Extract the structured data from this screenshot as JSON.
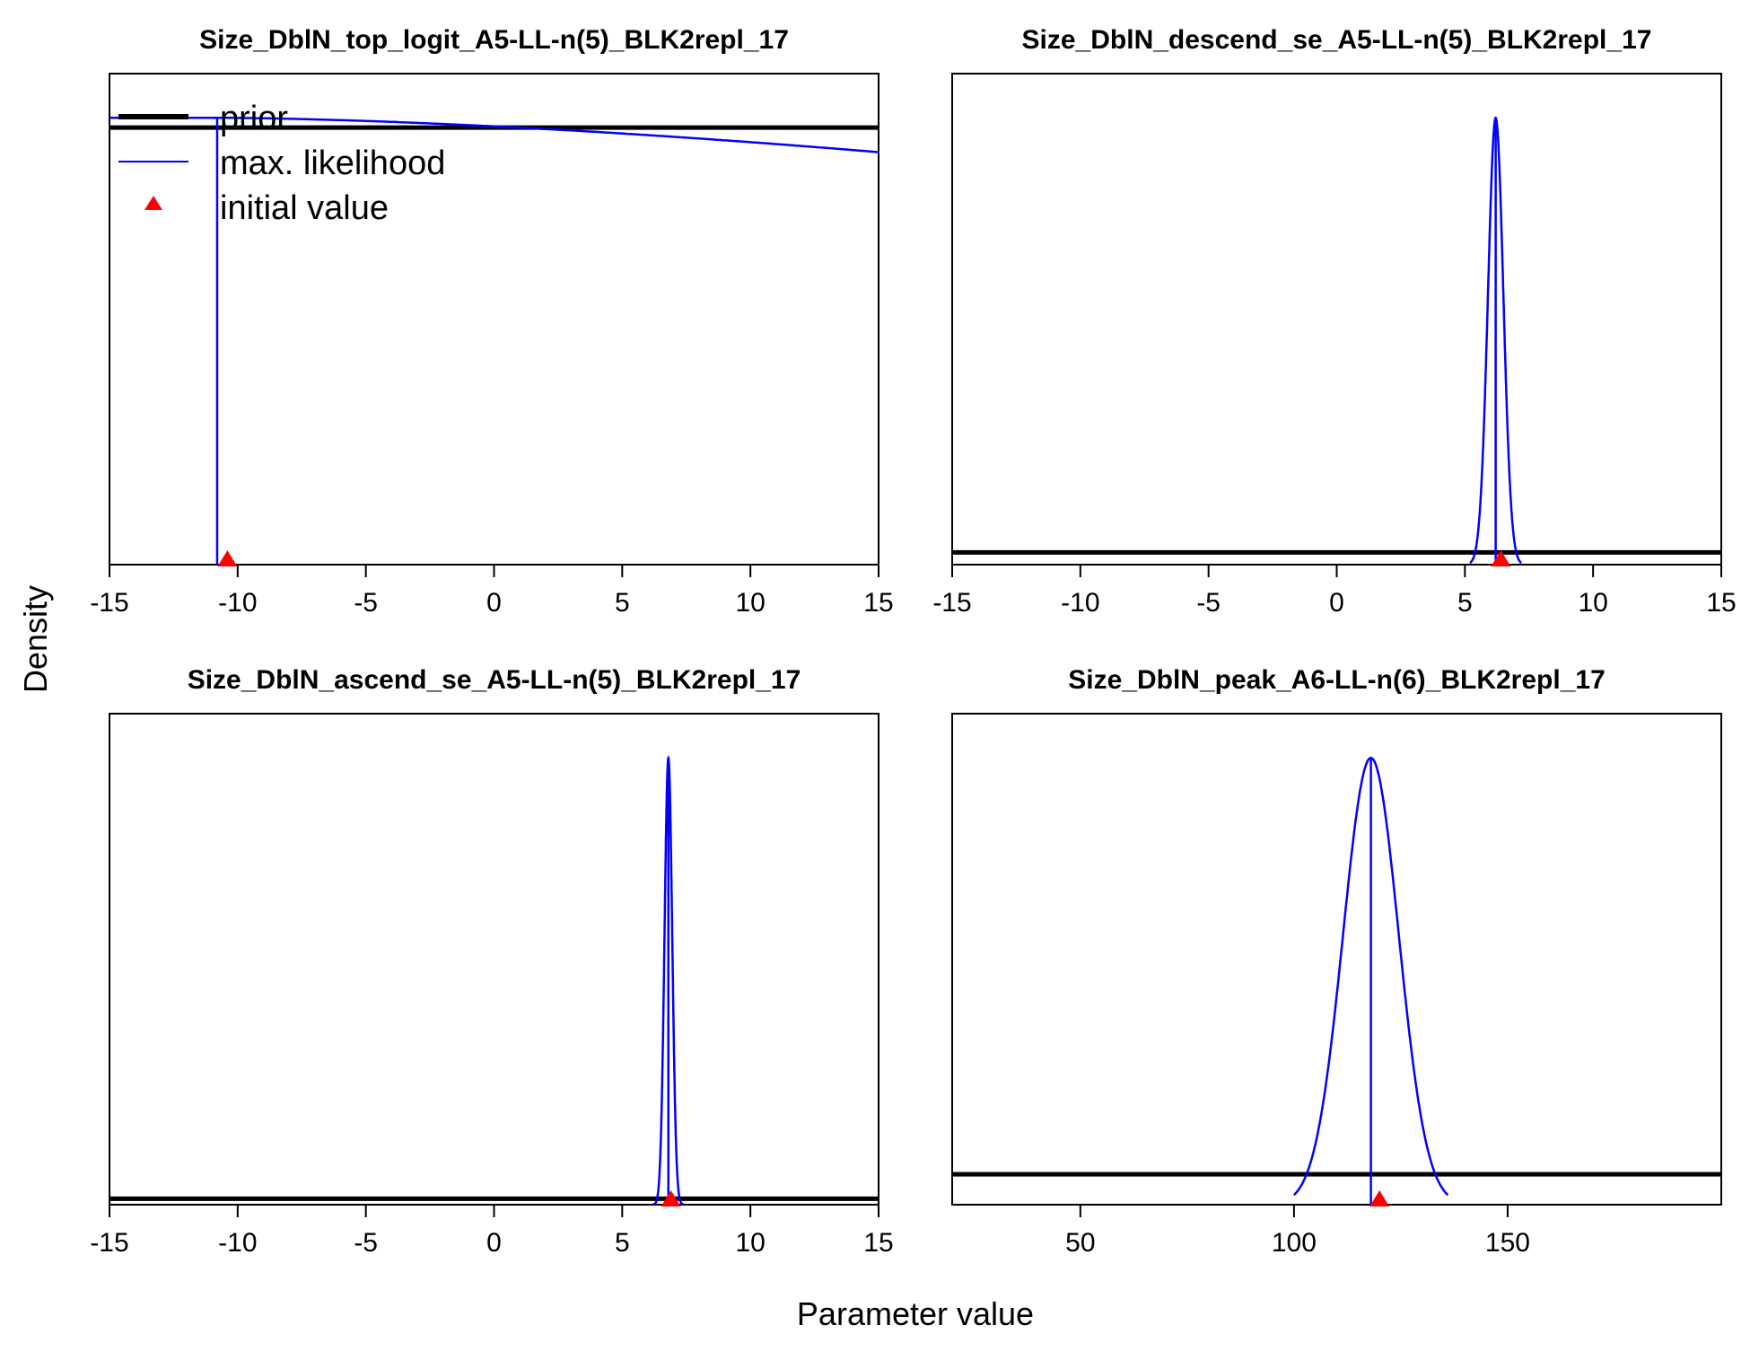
{
  "figure": {
    "ylabel": "Density",
    "xlabel": "Parameter value",
    "colors": {
      "prior": "#000000",
      "mle": "#0000ff",
      "initial": "#ff0000",
      "axis": "#000000"
    }
  },
  "legend": {
    "placement": "top-left of first panel",
    "items": [
      {
        "label": "prior",
        "symbol": "thick-black-line"
      },
      {
        "label": "max. likelihood",
        "symbol": "blue-line"
      },
      {
        "label": "initial value",
        "symbol": "red-triangle"
      }
    ]
  },
  "chart_data": [
    {
      "type": "line",
      "title": "Size_DblN_top_logit_A5-LL-n(5)_BLK2repl_17",
      "xlim": [
        -15,
        15
      ],
      "xticks": [
        -15,
        -10,
        -5,
        0,
        5,
        10,
        15
      ],
      "ylim_rel": [
        0,
        1
      ],
      "grid": false,
      "series": [
        {
          "name": "prior",
          "kind": "flat",
          "level_rel": 0.89
        },
        {
          "name": "max. likelihood",
          "kind": "decay-from-bound",
          "bound": -10.8,
          "start_level_rel": 0.91,
          "end_level_rel": 0.84
        }
      ],
      "mle": -10.8,
      "initial": -10.4
    },
    {
      "type": "line",
      "title": "Size_DblN_descend_se_A5-LL-n(5)_BLK2repl_17",
      "xlim": [
        -15,
        15
      ],
      "xticks": [
        -15,
        -10,
        -5,
        0,
        5,
        10,
        15
      ],
      "ylim_rel": [
        0,
        1
      ],
      "grid": false,
      "series": [
        {
          "name": "prior",
          "kind": "flat",
          "level_rel": 0.025
        },
        {
          "name": "max. likelihood",
          "kind": "normal",
          "mean": 6.2,
          "sd": 0.3,
          "peak_rel": 0.91,
          "range": [
            5.2,
            7.2
          ]
        }
      ],
      "mle": 6.2,
      "initial": 6.4
    },
    {
      "type": "line",
      "title": "Size_DblN_ascend_se_A5-LL-n(5)_BLK2repl_17",
      "xlim": [
        -15,
        15
      ],
      "xticks": [
        -15,
        -10,
        -5,
        0,
        5,
        10,
        15
      ],
      "ylim_rel": [
        0,
        1
      ],
      "grid": false,
      "series": [
        {
          "name": "prior",
          "kind": "flat",
          "level_rel": 0.012
        },
        {
          "name": "max. likelihood",
          "kind": "normal",
          "mean": 6.8,
          "sd": 0.15,
          "peak_rel": 0.91,
          "range": [
            6.2,
            7.4
          ]
        }
      ],
      "mle": 6.8,
      "initial": 6.9
    },
    {
      "type": "line",
      "title": "Size_DblN_peak_A6-LL-n(6)_BLK2repl_17",
      "xlim": [
        20,
        200
      ],
      "xticks": [
        50,
        100,
        150
      ],
      "ylim_rel": [
        0,
        1
      ],
      "grid": false,
      "series": [
        {
          "name": "prior",
          "kind": "flat",
          "level_rel": 0.062
        },
        {
          "name": "max. likelihood",
          "kind": "normal",
          "mean": 118,
          "sd": 6.5,
          "peak_rel": 0.91,
          "range": [
            100,
            136
          ]
        }
      ],
      "mle": 118,
      "initial": 120
    }
  ]
}
